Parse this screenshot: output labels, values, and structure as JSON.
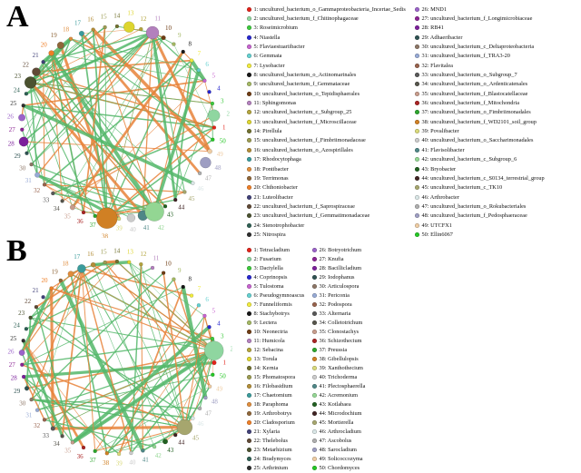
{
  "figure": {
    "background": "#ffffff",
    "edge_green": "#54b76a",
    "edge_orange": "#e8823a",
    "node_colors": [
      "#e2231a",
      "#8fd6a0",
      "#3dc93d",
      "#2727cf",
      "#c764cf",
      "#63d0d0",
      "#f0ea3d",
      "#171717",
      "#a3b763",
      "#6f3d14",
      "#b380bd",
      "#b3a43d",
      "#ddd52f",
      "#70702f",
      "#9b9b52",
      "#b28d38",
      "#3a9b9b",
      "#df8d3d",
      "#8f6639",
      "#ee7e26",
      "#414178",
      "#604936",
      "#4b5230",
      "#2f6054",
      "#2e2e2e",
      "#9b63c9",
      "#8b2393",
      "#7c209b",
      "#2f5252",
      "#8c7666",
      "#96a9d4",
      "#97624c",
      "#585858",
      "#56554c",
      "#c79c8c",
      "#a92424",
      "#2da52d",
      "#d08024",
      "#d9d97a",
      "#cbcbcb",
      "#4f8787",
      "#93d693",
      "#216021",
      "#402424",
      "#a6a66e",
      "#d9e6e6",
      "#aeaeae",
      "#9e9ec2",
      "#eecca3",
      "#25c625"
    ],
    "panels": [
      {
        "label": "A",
        "legend_left": [
          {
            "n": 1,
            "label": "uncultured_bacterium_o_Gammaproteobacteria_Incertae_Sedis"
          },
          {
            "n": 2,
            "label": "uncultured_bacterium_f_Chitinophagaceae"
          },
          {
            "n": 3,
            "label": "Roseimicrobium"
          },
          {
            "n": 4,
            "label": "Niastella"
          },
          {
            "n": 5,
            "label": "Flaviaestuariibacter"
          },
          {
            "n": 6,
            "label": "Gemmata"
          },
          {
            "n": 7,
            "label": "Lysobacter"
          },
          {
            "n": 8,
            "label": "uncultured_bacterium_o_Actinomarinales"
          },
          {
            "n": 9,
            "label": "uncultured_bacterium_f_Gemmataceae"
          },
          {
            "n": 10,
            "label": "uncultured_bacterium_o_Tepidisphaerales"
          },
          {
            "n": 11,
            "label": "Sphingomonas"
          },
          {
            "n": 12,
            "label": "uncultured_bacterium_c_Subgroup_25"
          },
          {
            "n": 13,
            "label": "uncultured_bacterium_f_Microscillaceae"
          },
          {
            "n": 14,
            "label": "Pirellula"
          },
          {
            "n": 15,
            "label": "uncultured_bacterium_f_Fimbriimonadaceae"
          },
          {
            "n": 16,
            "label": "uncultured_bacterium_o_Azospirillales"
          },
          {
            "n": 17,
            "label": "Rhodocytophaga"
          },
          {
            "n": 18,
            "label": "Pontibacter"
          },
          {
            "n": 19,
            "label": "Terrimonas"
          },
          {
            "n": 20,
            "label": "Chthoniobacter"
          },
          {
            "n": 21,
            "label": "Luteolibacter"
          },
          {
            "n": 22,
            "label": "uncultured_bacterium_f_Saprospiraceae"
          },
          {
            "n": 23,
            "label": "uncultured_bacterium_f_Gemmatimonadaceae"
          },
          {
            "n": 24,
            "label": "Stenotrophobacter"
          },
          {
            "n": 25,
            "label": "Nitrospira"
          }
        ],
        "legend_right": [
          {
            "n": 26,
            "label": "MND1"
          },
          {
            "n": 27,
            "label": "uncultured_bacterium_f_Longimicrobiaceae"
          },
          {
            "n": 28,
            "label": "RB41"
          },
          {
            "n": 29,
            "label": "Adhaeribacter"
          },
          {
            "n": 30,
            "label": "uncultured_bacterium_c_Deltaproteobacteria"
          },
          {
            "n": 31,
            "label": "uncultured_bacterium_f_TRA3-20"
          },
          {
            "n": 32,
            "label": "Flavitalea"
          },
          {
            "n": 33,
            "label": "uncultured_bacterium_o_Subgroup_7"
          },
          {
            "n": 34,
            "label": "uncultured_bacterium_o_Ardenticatenales"
          },
          {
            "n": 35,
            "label": "uncultured_bacterium_f_Blastocatellaceae"
          },
          {
            "n": 36,
            "label": "uncultured_bacterium_f_Mitochondria"
          },
          {
            "n": 37,
            "label": "uncultured_bacterium_o_Fimbriimonadales"
          },
          {
            "n": 38,
            "label": "uncultured_bacterium_f_WD2101_soil_group"
          },
          {
            "n": 39,
            "label": "Povalibacter"
          },
          {
            "n": 40,
            "label": "uncultured_bacterium_o_Saccharimonadales"
          },
          {
            "n": 41,
            "label": "Flavisolibacter"
          },
          {
            "n": 42,
            "label": "uncultured_bacterium_c_Subgroup_6"
          },
          {
            "n": 43,
            "label": "Bryobacter"
          },
          {
            "n": 44,
            "label": "uncultured_bacterium_c_S0134_terrestrial_group"
          },
          {
            "n": 45,
            "label": "uncultured_bacterium_c_TK10"
          },
          {
            "n": 46,
            "label": "Arthrobacter"
          },
          {
            "n": 47,
            "label": "uncultured_bacterium_o_Rokubacteriales"
          },
          {
            "n": 48,
            "label": "uncultured_bacterium_f_Pedosphaeraceae"
          },
          {
            "n": 49,
            "label": "UTCFX1"
          },
          {
            "n": 50,
            "label": "Ellin6067"
          }
        ],
        "network": {
          "seed": 11,
          "edge_count": 112,
          "green_ratio": 0.63,
          "hubs": [
            38,
            42,
            23,
            11
          ],
          "node_sizes": {
            "2": 6.5,
            "10": 2.4,
            "11": 7,
            "13": 6,
            "17": 2.8,
            "19": 3.8,
            "20": 3,
            "22": 4.5,
            "23": 6.5,
            "26": 3.8,
            "28": 5.2,
            "31": 2.8,
            "35": 2.8,
            "38": 11.5,
            "40": 4.5,
            "41": 5.5,
            "42": 10.5,
            "48": 6,
            "49": 2.6
          }
        }
      },
      {
        "label": "B",
        "legend_left": [
          {
            "n": 1,
            "label": "Tetracladium"
          },
          {
            "n": 2,
            "label": "Fusarium"
          },
          {
            "n": 3,
            "label": "Dactylella"
          },
          {
            "n": 4,
            "label": "Coprinopsis"
          },
          {
            "n": 5,
            "label": "Tulostoma"
          },
          {
            "n": 6,
            "label": "Pseudogymnoascus"
          },
          {
            "n": 7,
            "label": "Funneliformis"
          },
          {
            "n": 8,
            "label": "Stachybotrys"
          },
          {
            "n": 9,
            "label": "Lectera"
          },
          {
            "n": 10,
            "label": "Neonectria"
          },
          {
            "n": 11,
            "label": "Humicola"
          },
          {
            "n": 12,
            "label": "Sebacina"
          },
          {
            "n": 13,
            "label": "Torula"
          },
          {
            "n": 14,
            "label": "Kernia"
          },
          {
            "n": 15,
            "label": "Phomatospora"
          },
          {
            "n": 16,
            "label": "Filobasidium"
          },
          {
            "n": 17,
            "label": "Chaetomium"
          },
          {
            "n": 18,
            "label": "Paraphoma"
          },
          {
            "n": 19,
            "label": "Arthrobotrys"
          },
          {
            "n": 20,
            "label": "Cladosporium"
          },
          {
            "n": 21,
            "label": "Xylaria"
          },
          {
            "n": 22,
            "label": "Thelebolus"
          },
          {
            "n": 23,
            "label": "Metarhizium"
          },
          {
            "n": 24,
            "label": "Bradymyces"
          },
          {
            "n": 25,
            "label": "Arthrinium"
          }
        ],
        "legend_right": [
          {
            "n": 26,
            "label": "Botryotrichum"
          },
          {
            "n": 27,
            "label": "Knufia"
          },
          {
            "n": 28,
            "label": "Bacillicladium"
          },
          {
            "n": 29,
            "label": "Iodophanus"
          },
          {
            "n": 30,
            "label": "Articulospora"
          },
          {
            "n": 31,
            "label": "Periconia"
          },
          {
            "n": 32,
            "label": "Podospora"
          },
          {
            "n": 33,
            "label": "Alternaria"
          },
          {
            "n": 34,
            "label": "Colletotrichum"
          },
          {
            "n": 35,
            "label": "Clonostachys"
          },
          {
            "n": 36,
            "label": "Schizothecium"
          },
          {
            "n": 37,
            "label": "Preussia"
          },
          {
            "n": 38,
            "label": "Gibellulopsis"
          },
          {
            "n": 39,
            "label": "Xanthothecium"
          },
          {
            "n": 40,
            "label": "Trichoderma"
          },
          {
            "n": 41,
            "label": "Plectosphaerella"
          },
          {
            "n": 42,
            "label": "Acremonium"
          },
          {
            "n": 43,
            "label": "Kotlabaea"
          },
          {
            "n": 44,
            "label": "Microdochium"
          },
          {
            "n": 45,
            "label": "Mortierella"
          },
          {
            "n": 46,
            "label": "Arthrocladium"
          },
          {
            "n": 47,
            "label": "Ascobolus"
          },
          {
            "n": 48,
            "label": "Sarocladium"
          },
          {
            "n": 49,
            "label": "Solicoccozyma"
          },
          {
            "n": 50,
            "label": "Chordomyces"
          }
        ],
        "network": {
          "seed": 29,
          "edge_count": 108,
          "green_ratio": 0.55,
          "hubs": [
            2,
            45,
            17
          ],
          "node_sizes": {
            "1": 2.4,
            "2": 10.5,
            "16": 2.6,
            "17": 4.6,
            "18": 3.2,
            "26": 3.2,
            "29": 2.4,
            "33": 2.4,
            "43": 2.8,
            "45": 8.5
          }
        }
      }
    ]
  }
}
